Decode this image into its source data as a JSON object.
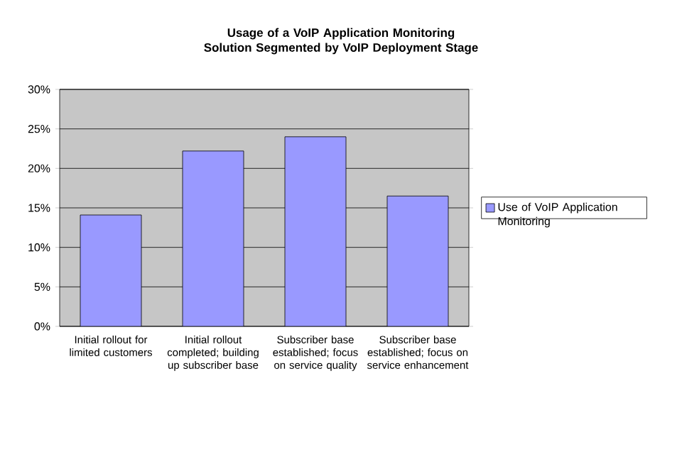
{
  "chart_data": {
    "type": "bar",
    "title": "Usage of a VoIP Application Monitoring Solution Segmented by VoIP Deployment Stage",
    "categories": [
      "Initial rollout for limited customers",
      "Initial rollout completed; building up subscriber base",
      "Subscriber base established; focus on service quality",
      "Subscriber base established; focus on service enhancement"
    ],
    "series": [
      {
        "name": "Use of VoIP Application Monitoring",
        "color": "#9999ff",
        "values": [
          14.1,
          22.2,
          24.0,
          16.5
        ]
      }
    ],
    "ylim": [
      0,
      30
    ],
    "yticks": [
      {
        "value": 0,
        "label": "0%"
      },
      {
        "value": 5,
        "label": "5%"
      },
      {
        "value": 10,
        "label": "10%"
      },
      {
        "value": 15,
        "label": "15%"
      },
      {
        "value": 20,
        "label": "20%"
      },
      {
        "value": 25,
        "label": "25%"
      },
      {
        "value": 30,
        "label": "30%"
      }
    ],
    "grid": "y",
    "legend": "right"
  }
}
